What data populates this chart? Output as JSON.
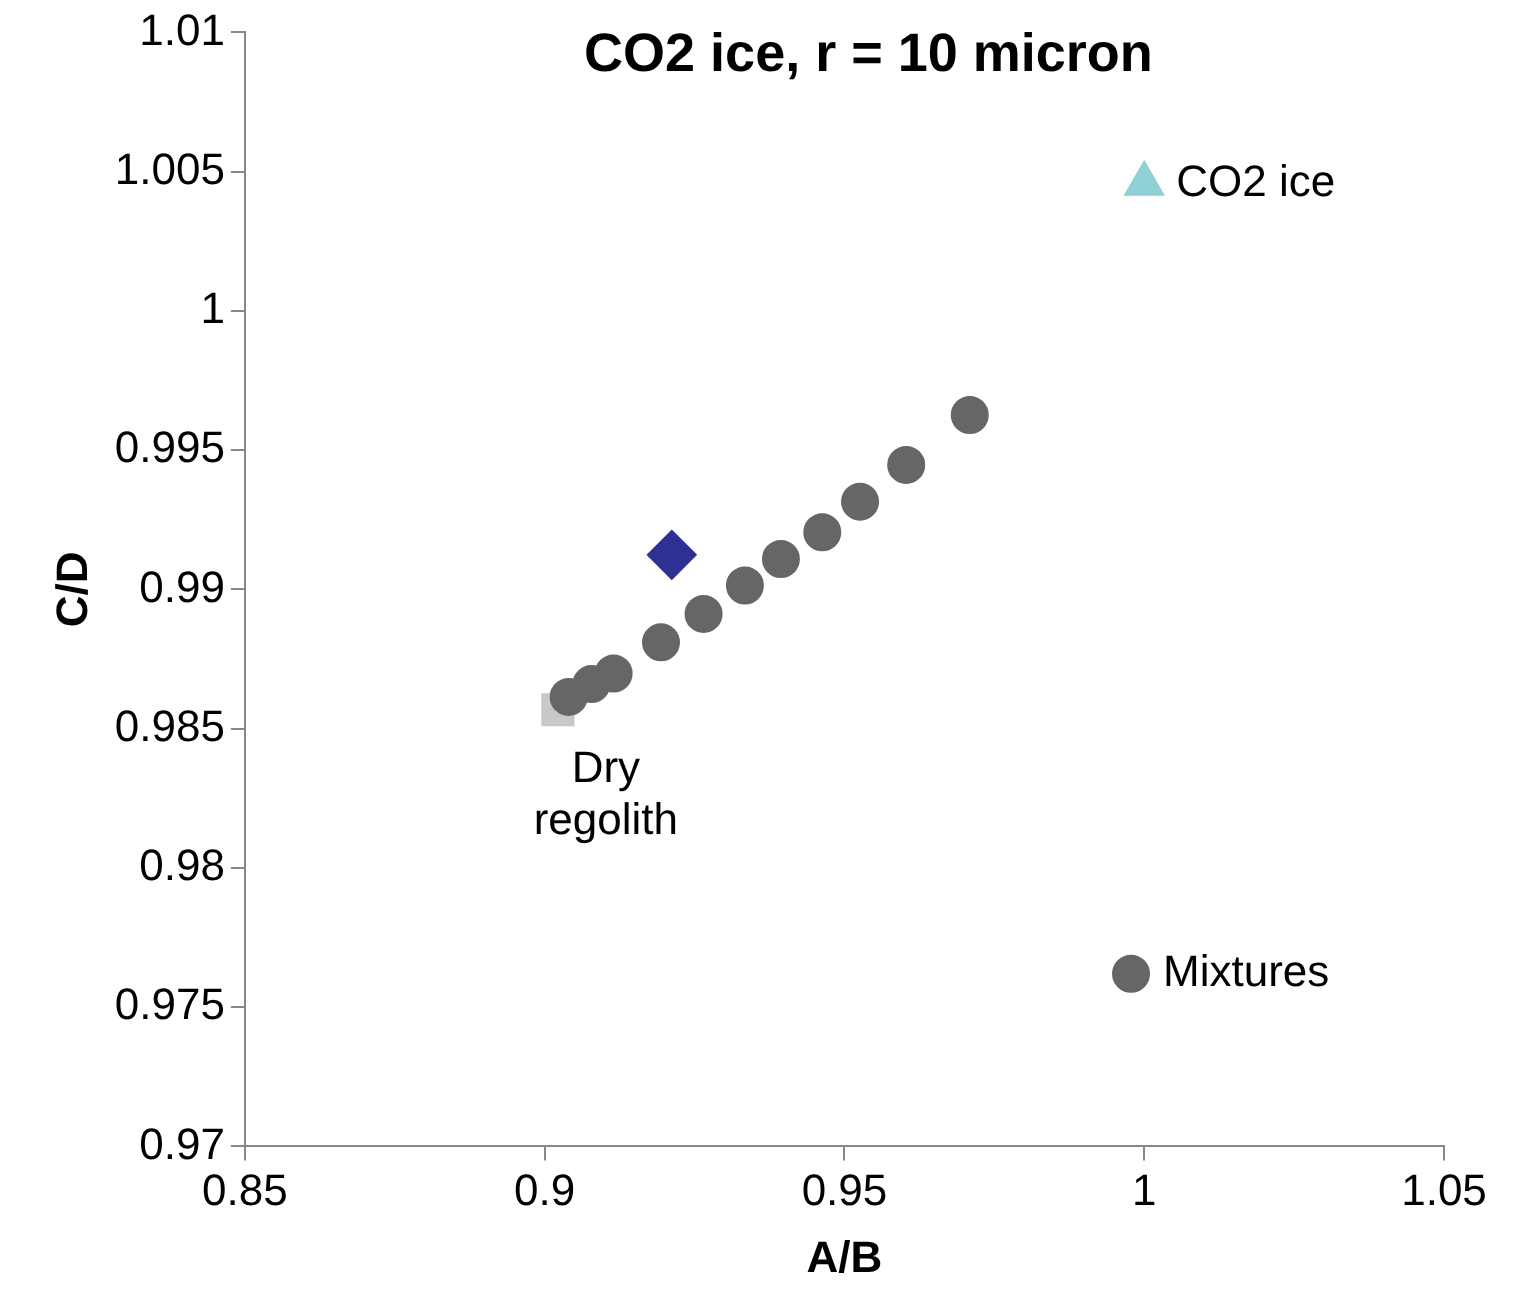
{
  "chart_data": {
    "type": "scatter",
    "title": "CO2 ice, r = 10 micron",
    "xlabel": "A/B",
    "ylabel": "C/D",
    "xlim": [
      0.85,
      1.05
    ],
    "xticks": [
      0.85,
      0.9,
      0.95,
      1,
      1.05
    ],
    "ylim": [
      0.97,
      1.01
    ],
    "yticks": [
      0.97,
      0.975,
      0.98,
      0.985,
      0.99,
      0.995,
      1,
      1.005,
      1.01
    ],
    "grid": false,
    "legend": false,
    "series": [
      {
        "name": "Mixtures",
        "color": "#666666",
        "marker": "circle",
        "x": [
          0.9709,
          0.9603,
          0.9526,
          0.9463,
          0.9394,
          0.9334,
          0.9265,
          0.9194,
          0.9115,
          0.9078,
          0.904,
          0.9978
        ],
        "values": [
          0.99626,
          0.99447,
          0.99315,
          0.99205,
          0.99109,
          0.99014,
          0.98912,
          0.9881,
          0.98698,
          0.9866,
          0.98614,
          0.9762
        ]
      },
      {
        "name": "Dry\nregolith",
        "color": "#c8c8c8",
        "marker": "square",
        "x": [
          0.9022
        ],
        "values": [
          0.98568
        ]
      },
      {
        "color": "#2e3192",
        "marker": "diamond",
        "x": [
          0.9212
        ],
        "values": [
          0.99124
        ]
      },
      {
        "name": "CO2 ice",
        "color": "#8fd0d6",
        "marker": "triangle",
        "x": [
          1.0
        ],
        "values": [
          1.00457
        ]
      }
    ]
  }
}
